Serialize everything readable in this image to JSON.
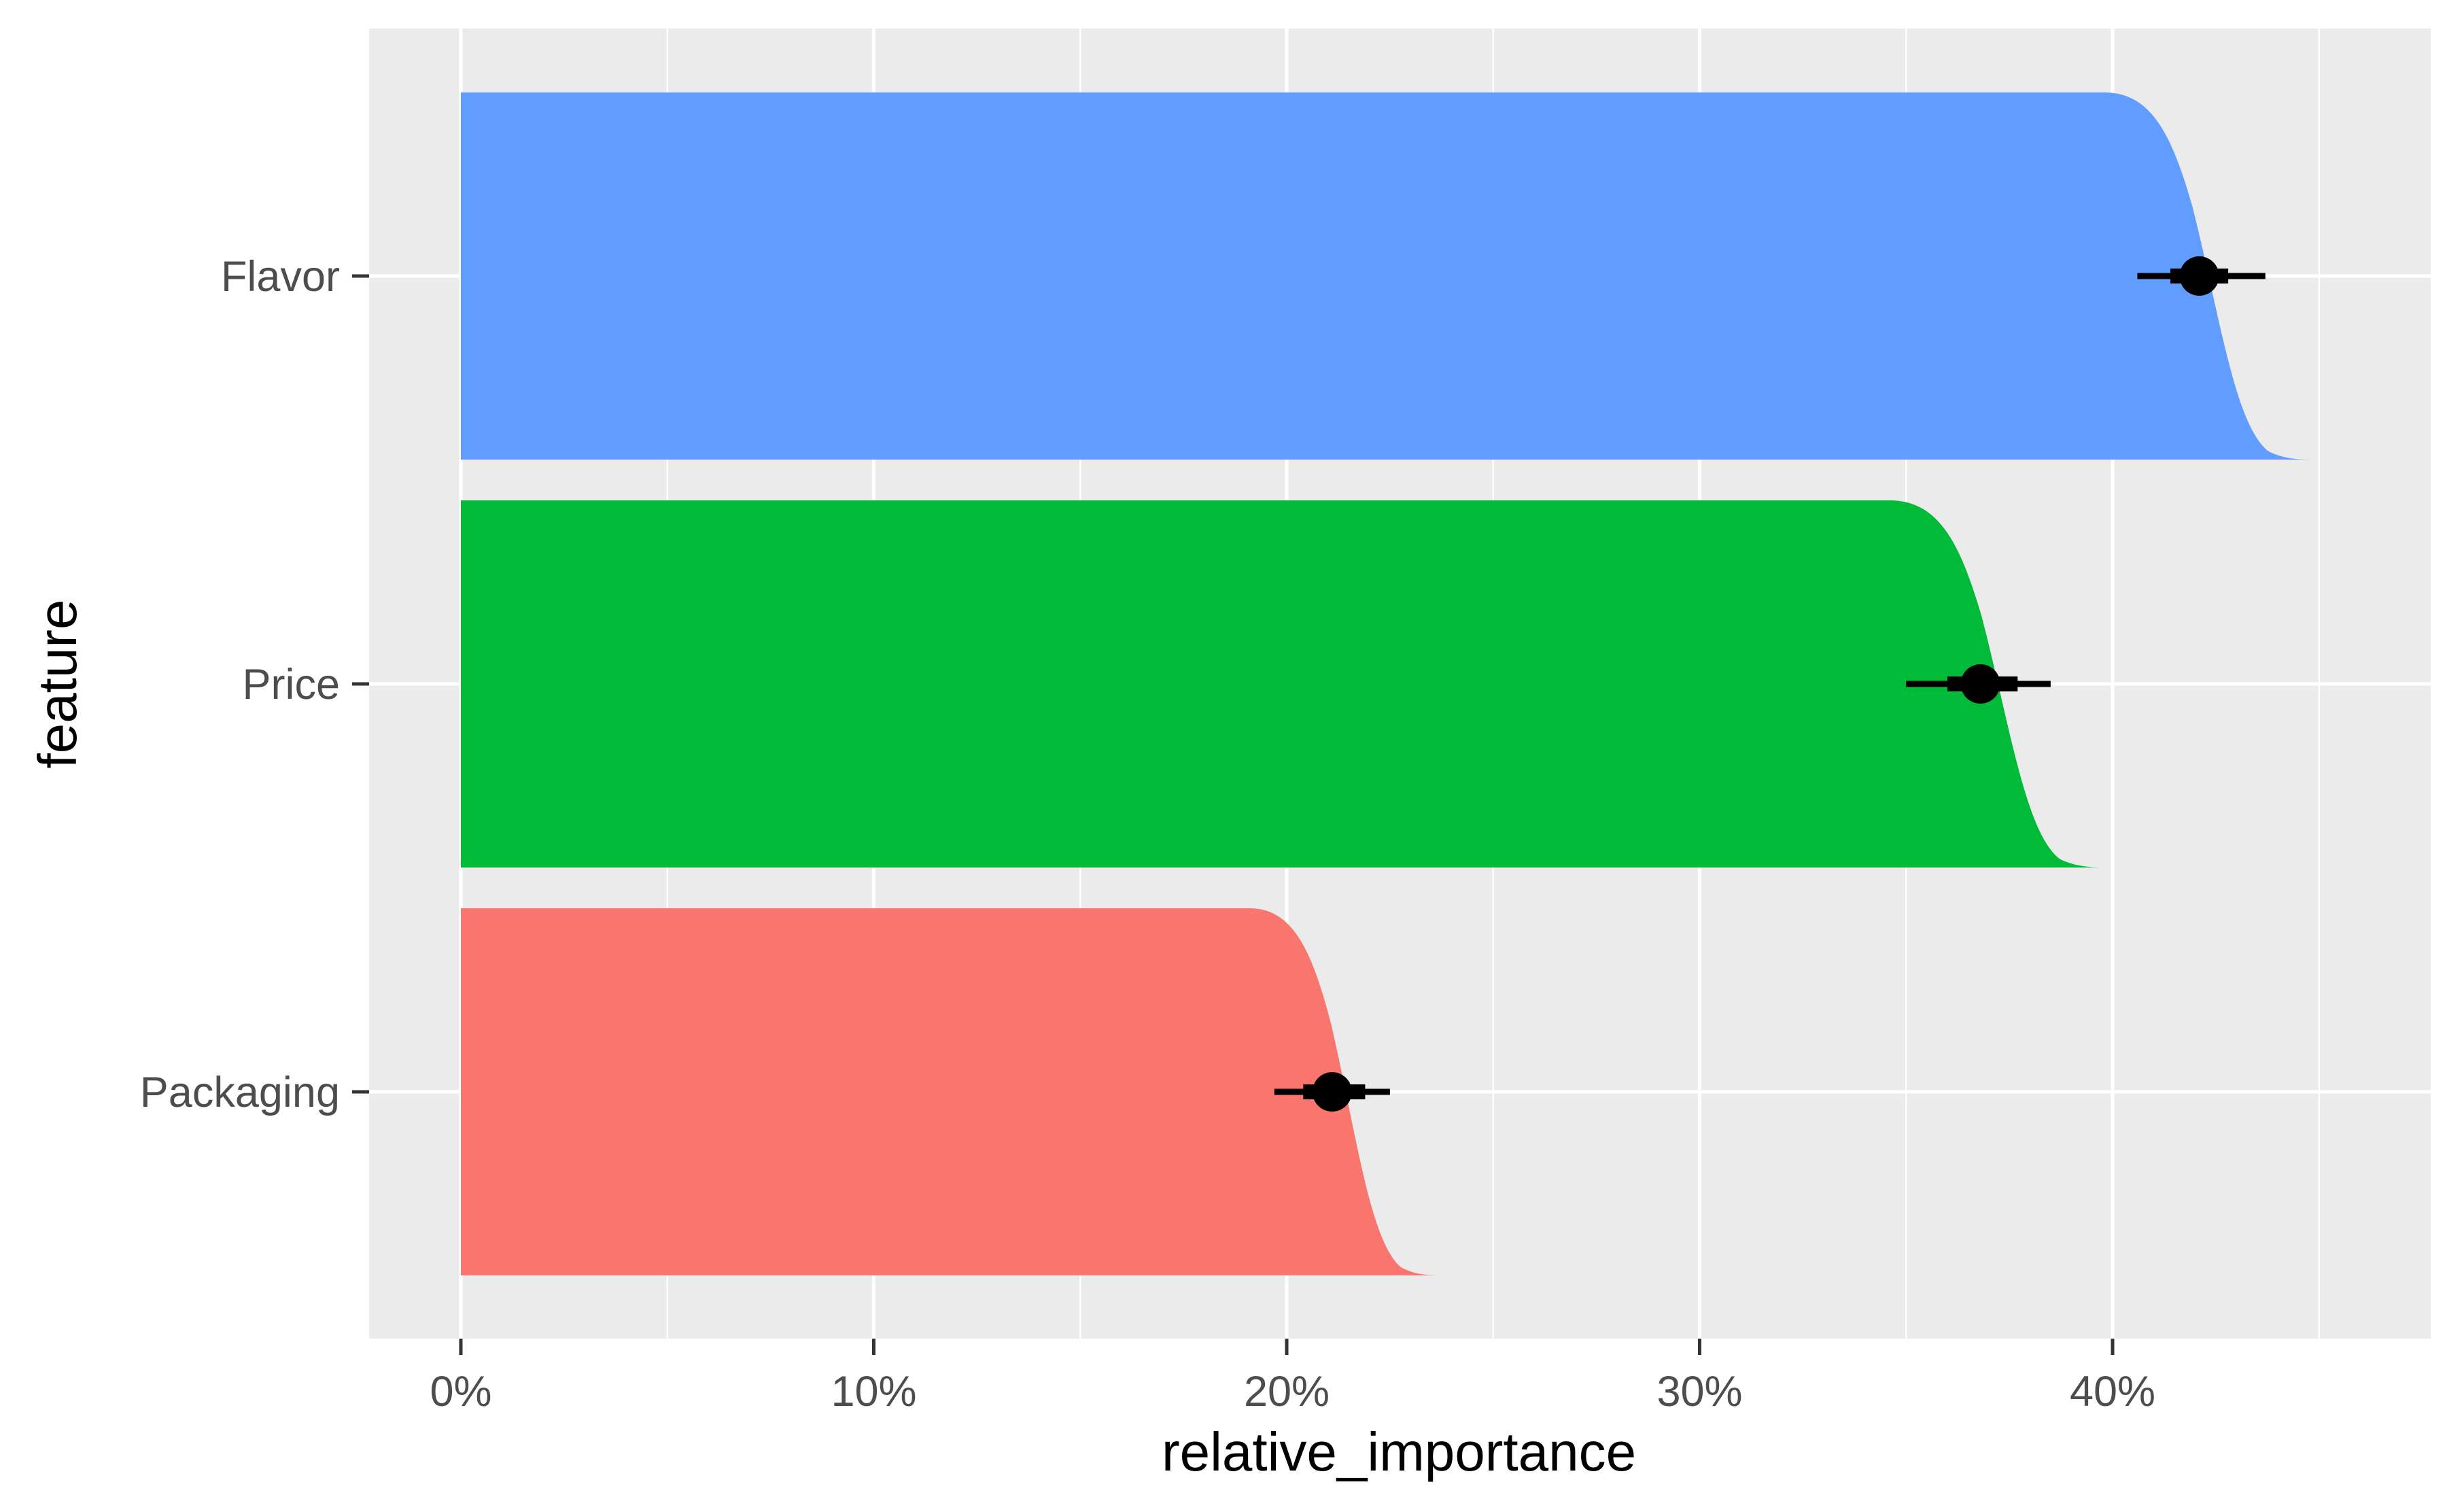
{
  "chart_data": {
    "type": "bar",
    "subtype": "slab-interval (ccdf bars with point + interval)",
    "title": "",
    "xlabel": "relative_importance",
    "ylabel": "feature",
    "x_axis": {
      "ticks": [
        0,
        10,
        20,
        30,
        40
      ],
      "tick_labels": [
        "0%",
        "10%",
        "20%",
        "30%",
        "40%"
      ],
      "minor_gridlines": [
        5,
        15,
        25,
        35,
        45
      ],
      "range": [
        -2.2,
        47.6
      ]
    },
    "categories": [
      "Flavor",
      "Price",
      "Packaging"
    ],
    "series": [
      {
        "category": "Flavor",
        "color": "#619CFF",
        "point": 42.1,
        "interval_66": [
          41.4,
          42.8
        ],
        "interval_95": [
          40.6,
          43.7
        ],
        "slab_plateau_end": 39.8,
        "slab_end": 44.9
      },
      {
        "category": "Price",
        "color": "#00BA38",
        "point": 36.8,
        "interval_66": [
          36.0,
          37.7
        ],
        "interval_95": [
          35.0,
          38.5
        ],
        "slab_plateau_end": 34.6,
        "slab_end": 39.9
      },
      {
        "category": "Packaging",
        "color": "#F8766D",
        "point": 21.1,
        "interval_66": [
          20.4,
          21.9
        ],
        "interval_95": [
          19.7,
          22.5
        ],
        "slab_plateau_end": 19.1,
        "slab_end": 23.8
      }
    ],
    "grid": true,
    "legend": "none",
    "panel_background": "#EBEBEB"
  }
}
